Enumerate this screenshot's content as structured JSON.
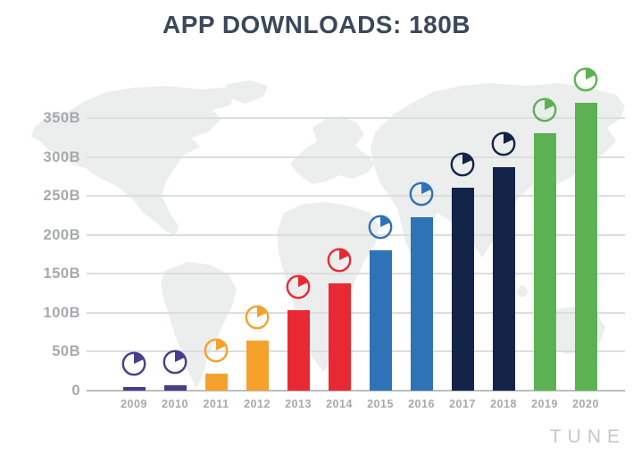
{
  "title": "APP DOWNLOADS: 180B",
  "brand": {
    "logo_text": "TUNE"
  },
  "chart_data": {
    "type": "bar",
    "title": "APP DOWNLOADS: 180B",
    "categories": [
      "2009",
      "2010",
      "2011",
      "2012",
      "2013",
      "2014",
      "2015",
      "2016",
      "2017",
      "2018",
      "2019",
      "2020"
    ],
    "values": [
      5,
      7,
      22,
      64,
      103,
      138,
      180,
      223,
      260,
      287,
      330,
      370
    ],
    "unit": "billions of app downloads",
    "xlabel": "",
    "ylabel": "",
    "ylim": [
      0,
      390
    ],
    "ytick_values": [
      350,
      300,
      250,
      200,
      150,
      100,
      50,
      0
    ],
    "ytick_labels": [
      "350B",
      "300B",
      "250B",
      "200B",
      "150B",
      "100B",
      "50B",
      "0"
    ],
    "grid": true,
    "legend_position": "none",
    "bar_colors": [
      "#4B3C8B",
      "#4B3C8B",
      "#F5A12C",
      "#F5A12C",
      "#E82934",
      "#E82934",
      "#2F73B7",
      "#2F73B7",
      "#132448",
      "#132448",
      "#5CB253",
      "#5CB253"
    ],
    "marker": "pie-wedge icon above each bar, same color as bar",
    "background": "light gray world map silhouette"
  },
  "colors": {
    "title": "#3B4859",
    "axis_label": "#A6A9AD",
    "gridline": "#DCDDDE",
    "axis_line": "#BCBEC1",
    "map": "#ECEDED",
    "background": "#FFFFFF",
    "logo": "#C5C7C9"
  }
}
